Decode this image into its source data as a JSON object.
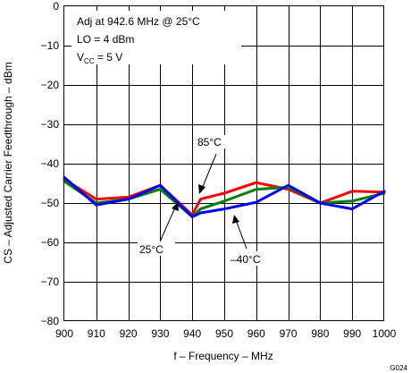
{
  "chart_data": {
    "type": "line",
    "xlabel": "f – Frequency – MHz",
    "ylabel": "CS – Adjusted Carrier Feedthrough – dBm",
    "xlim": [
      900,
      1000
    ],
    "ylim": [
      -80,
      0
    ],
    "x_ticks": [
      900,
      910,
      920,
      930,
      940,
      950,
      960,
      970,
      980,
      990,
      1000
    ],
    "y_ticks": [
      0,
      -10,
      -20,
      -30,
      -40,
      -50,
      -60,
      -70,
      -80
    ],
    "grid": true,
    "conditions": {
      "line1": "Adj at 942.6 MHz @ 25°C",
      "line2": "LO = 4 dBm",
      "vcc_main": "V",
      "vcc_sub": "CC",
      "vcc_value": " = 5 V"
    },
    "figure_id": "G024",
    "series": [
      {
        "name": "85°C",
        "color": "#ff0000",
        "x": [
          900,
          910,
          920,
          930,
          940,
          942.6,
          950,
          960,
          970,
          980,
          990,
          1000
        ],
        "y": [
          -44,
          -49,
          -48.5,
          -45.5,
          -53,
          -49,
          -47.5,
          -44.8,
          -46.5,
          -50,
          -47,
          -47.2
        ]
      },
      {
        "name": "25°C",
        "color": "#008000",
        "x": [
          900,
          910,
          920,
          930,
          940,
          942.6,
          950,
          960,
          970,
          980,
          990,
          1000
        ],
        "y": [
          -44.5,
          -50,
          -49,
          -46.5,
          -53.5,
          -51.5,
          -49.5,
          -46.5,
          -46,
          -50,
          -49.5,
          -47.5
        ]
      },
      {
        "name": "–40°C",
        "color": "#0000ff",
        "x": [
          900,
          910,
          920,
          930,
          940,
          942.6,
          950,
          960,
          970,
          980,
          990,
          1000
        ],
        "y": [
          -43.5,
          -50.5,
          -49,
          -45.5,
          -53.5,
          -52.5,
          -51.5,
          -49.8,
          -45.5,
          -50,
          -51.5,
          -47
        ]
      }
    ]
  }
}
